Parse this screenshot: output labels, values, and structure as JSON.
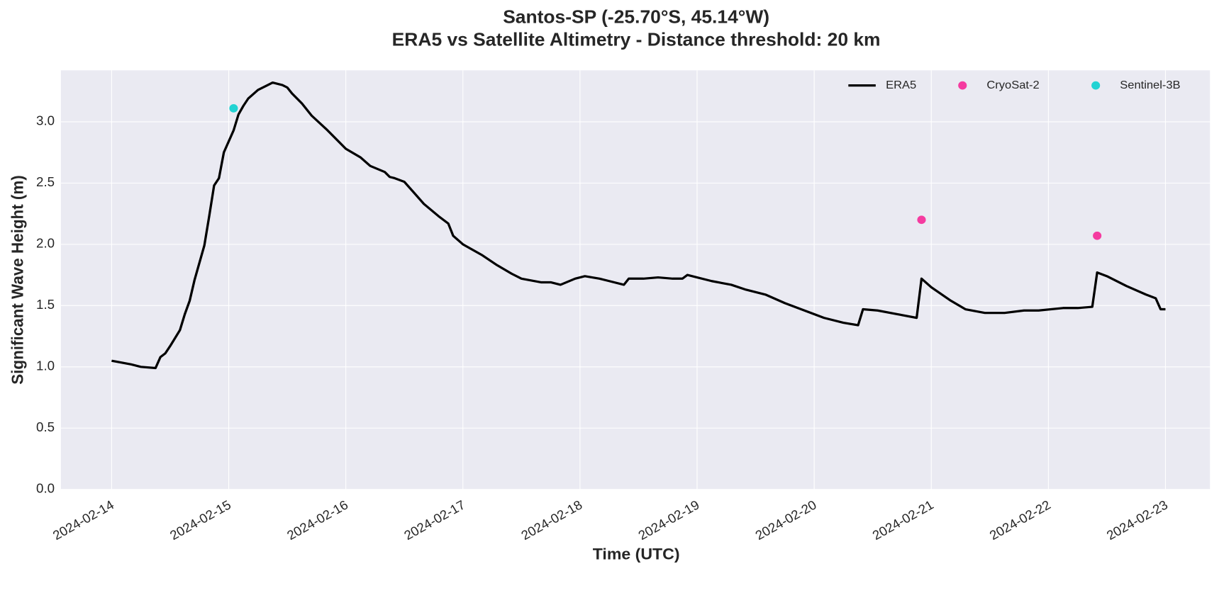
{
  "chart_data": {
    "type": "line",
    "title": "Santos-SP (-25.70°S, 45.14°W)",
    "subtitle": "ERA5 vs Satellite Altimetry - Distance threshold: 20 km",
    "xlabel": "Time (UTC)",
    "ylabel": "Significant Wave Height (m)",
    "xlim": [
      "2024-02-13T13:36",
      "2024-02-23T09:07"
    ],
    "xticks": [
      "2024-02-14",
      "2024-02-15",
      "2024-02-16",
      "2024-02-17",
      "2024-02-18",
      "2024-02-19",
      "2024-02-20",
      "2024-02-21",
      "2024-02-22",
      "2024-02-23"
    ],
    "ylim": [
      0,
      3.42
    ],
    "yticks": [
      {
        "value": 0,
        "label": "0.0"
      },
      0.5,
      {
        "value": 1,
        "label": "1.0"
      },
      1.5,
      {
        "value": 2,
        "label": "2.0"
      },
      2.5,
      {
        "value": 3,
        "label": "3.0"
      }
    ],
    "grid": true,
    "legend": "upper right",
    "series": [
      {
        "name": "ERA5",
        "type": "line",
        "color": "#000000",
        "x": [
          "2024-02-14T00:00",
          "2024-02-14T04:00",
          "2024-02-14T06:00",
          "2024-02-14T09:00",
          "2024-02-14T10:00",
          "2024-02-14T11:00",
          "2024-02-14T12:00",
          "2024-02-14T14:00",
          "2024-02-14T15:00",
          "2024-02-14T16:00",
          "2024-02-14T17:00",
          "2024-02-14T19:00",
          "2024-02-14T20:00",
          "2024-02-14T21:00",
          "2024-02-14T22:00",
          "2024-02-14T23:00",
          "2024-02-15T01:00",
          "2024-02-15T02:00",
          "2024-02-15T03:00",
          "2024-02-15T04:00",
          "2024-02-15T06:00",
          "2024-02-15T08:00",
          "2024-02-15T09:00",
          "2024-02-15T11:00",
          "2024-02-15T12:00",
          "2024-02-15T13:00",
          "2024-02-15T15:00",
          "2024-02-15T17:00",
          "2024-02-15T20:00",
          "2024-02-15T22:00",
          "2024-02-16T00:00",
          "2024-02-16T03:00",
          "2024-02-16T05:00",
          "2024-02-16T08:00",
          "2024-02-16T09:00",
          "2024-02-16T10:00",
          "2024-02-16T12:00",
          "2024-02-16T14:00",
          "2024-02-16T16:00",
          "2024-02-16T19:00",
          "2024-02-16T21:00",
          "2024-02-16T22:00",
          "2024-02-17T00:00",
          "2024-02-17T04:00",
          "2024-02-17T07:00",
          "2024-02-17T10:00",
          "2024-02-17T12:00",
          "2024-02-17T16:00",
          "2024-02-17T18:00",
          "2024-02-17T20:00",
          "2024-02-17T23:00",
          "2024-02-18T01:00",
          "2024-02-18T04:00",
          "2024-02-18T06:00",
          "2024-02-18T09:00",
          "2024-02-18T10:00",
          "2024-02-18T13:00",
          "2024-02-18T16:00",
          "2024-02-18T19:00",
          "2024-02-18T21:00",
          "2024-02-18T22:00",
          "2024-02-19T00:00",
          "2024-02-19T03:00",
          "2024-02-19T07:00",
          "2024-02-19T10:00",
          "2024-02-19T14:00",
          "2024-02-19T18:00",
          "2024-02-19T22:00",
          "2024-02-20T02:00",
          "2024-02-20T06:00",
          "2024-02-20T09:00",
          "2024-02-20T10:00",
          "2024-02-20T13:00",
          "2024-02-20T17:00",
          "2024-02-20T21:00",
          "2024-02-20T22:00",
          "2024-02-21T00:00",
          "2024-02-21T04:00",
          "2024-02-21T07:00",
          "2024-02-21T11:00",
          "2024-02-21T15:00",
          "2024-02-21T19:00",
          "2024-02-21T22:00",
          "2024-02-22T03:00",
          "2024-02-22T06:00",
          "2024-02-22T09:00",
          "2024-02-22T10:00",
          "2024-02-22T12:00",
          "2024-02-22T16:00",
          "2024-02-22T20:00",
          "2024-02-22T22:00",
          "2024-02-22T23:00",
          "2024-02-23T00:00"
        ],
        "values": [
          1.05,
          1.02,
          1.0,
          0.99,
          1.08,
          1.11,
          1.17,
          1.3,
          1.43,
          1.54,
          1.71,
          1.99,
          2.23,
          2.48,
          2.54,
          2.75,
          2.93,
          3.06,
          3.13,
          3.19,
          3.26,
          3.3,
          3.32,
          3.3,
          3.28,
          3.23,
          3.15,
          3.05,
          2.94,
          2.86,
          2.78,
          2.71,
          2.64,
          2.59,
          2.55,
          2.54,
          2.51,
          2.42,
          2.33,
          2.23,
          2.17,
          2.07,
          2.0,
          1.91,
          1.83,
          1.76,
          1.72,
          1.69,
          1.69,
          1.67,
          1.72,
          1.74,
          1.72,
          1.7,
          1.67,
          1.72,
          1.72,
          1.73,
          1.72,
          1.72,
          1.75,
          1.73,
          1.7,
          1.67,
          1.63,
          1.59,
          1.52,
          1.46,
          1.4,
          1.36,
          1.34,
          1.47,
          1.46,
          1.43,
          1.4,
          1.72,
          1.65,
          1.54,
          1.47,
          1.44,
          1.44,
          1.46,
          1.46,
          1.48,
          1.48,
          1.49,
          1.77,
          1.74,
          1.66,
          1.59,
          1.56,
          1.47,
          1.47
        ]
      },
      {
        "name": "CryoSat-2",
        "type": "scatter",
        "color": "#f53ba0",
        "x": [
          "2024-02-20T22:00",
          "2024-02-22T10:00"
        ],
        "values": [
          2.2,
          2.07
        ]
      },
      {
        "name": "Sentinel-3B",
        "type": "scatter",
        "color": "#22d3d3",
        "x": [
          "2024-02-15T01:00"
        ],
        "values": [
          3.11
        ]
      }
    ]
  }
}
